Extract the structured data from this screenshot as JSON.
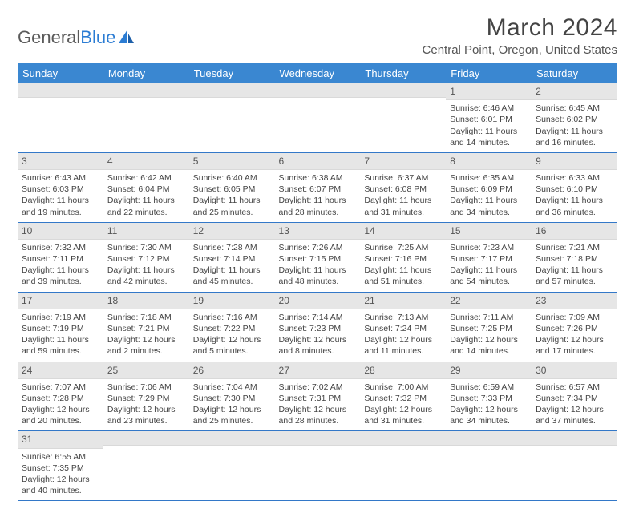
{
  "logo": {
    "text1": "General",
    "text2": "Blue"
  },
  "title": "March 2024",
  "subtitle": "Central Point, Oregon, United States",
  "colors": {
    "header_bg": "#3a87d1",
    "row_border": "#3378c8",
    "daynum_bg": "#e6e6e6",
    "text": "#444444",
    "accent": "#2b7cd3"
  },
  "weekdays": [
    "Sunday",
    "Monday",
    "Tuesday",
    "Wednesday",
    "Thursday",
    "Friday",
    "Saturday"
  ],
  "first_day_index": 5,
  "days": [
    {
      "n": 1,
      "sunrise": "6:46 AM",
      "sunset": "6:01 PM",
      "daylight": "11 hours and 14 minutes."
    },
    {
      "n": 2,
      "sunrise": "6:45 AM",
      "sunset": "6:02 PM",
      "daylight": "11 hours and 16 minutes."
    },
    {
      "n": 3,
      "sunrise": "6:43 AM",
      "sunset": "6:03 PM",
      "daylight": "11 hours and 19 minutes."
    },
    {
      "n": 4,
      "sunrise": "6:42 AM",
      "sunset": "6:04 PM",
      "daylight": "11 hours and 22 minutes."
    },
    {
      "n": 5,
      "sunrise": "6:40 AM",
      "sunset": "6:05 PM",
      "daylight": "11 hours and 25 minutes."
    },
    {
      "n": 6,
      "sunrise": "6:38 AM",
      "sunset": "6:07 PM",
      "daylight": "11 hours and 28 minutes."
    },
    {
      "n": 7,
      "sunrise": "6:37 AM",
      "sunset": "6:08 PM",
      "daylight": "11 hours and 31 minutes."
    },
    {
      "n": 8,
      "sunrise": "6:35 AM",
      "sunset": "6:09 PM",
      "daylight": "11 hours and 34 minutes."
    },
    {
      "n": 9,
      "sunrise": "6:33 AM",
      "sunset": "6:10 PM",
      "daylight": "11 hours and 36 minutes."
    },
    {
      "n": 10,
      "sunrise": "7:32 AM",
      "sunset": "7:11 PM",
      "daylight": "11 hours and 39 minutes."
    },
    {
      "n": 11,
      "sunrise": "7:30 AM",
      "sunset": "7:12 PM",
      "daylight": "11 hours and 42 minutes."
    },
    {
      "n": 12,
      "sunrise": "7:28 AM",
      "sunset": "7:14 PM",
      "daylight": "11 hours and 45 minutes."
    },
    {
      "n": 13,
      "sunrise": "7:26 AM",
      "sunset": "7:15 PM",
      "daylight": "11 hours and 48 minutes."
    },
    {
      "n": 14,
      "sunrise": "7:25 AM",
      "sunset": "7:16 PM",
      "daylight": "11 hours and 51 minutes."
    },
    {
      "n": 15,
      "sunrise": "7:23 AM",
      "sunset": "7:17 PM",
      "daylight": "11 hours and 54 minutes."
    },
    {
      "n": 16,
      "sunrise": "7:21 AM",
      "sunset": "7:18 PM",
      "daylight": "11 hours and 57 minutes."
    },
    {
      "n": 17,
      "sunrise": "7:19 AM",
      "sunset": "7:19 PM",
      "daylight": "11 hours and 59 minutes."
    },
    {
      "n": 18,
      "sunrise": "7:18 AM",
      "sunset": "7:21 PM",
      "daylight": "12 hours and 2 minutes."
    },
    {
      "n": 19,
      "sunrise": "7:16 AM",
      "sunset": "7:22 PM",
      "daylight": "12 hours and 5 minutes."
    },
    {
      "n": 20,
      "sunrise": "7:14 AM",
      "sunset": "7:23 PM",
      "daylight": "12 hours and 8 minutes."
    },
    {
      "n": 21,
      "sunrise": "7:13 AM",
      "sunset": "7:24 PM",
      "daylight": "12 hours and 11 minutes."
    },
    {
      "n": 22,
      "sunrise": "7:11 AM",
      "sunset": "7:25 PM",
      "daylight": "12 hours and 14 minutes."
    },
    {
      "n": 23,
      "sunrise": "7:09 AM",
      "sunset": "7:26 PM",
      "daylight": "12 hours and 17 minutes."
    },
    {
      "n": 24,
      "sunrise": "7:07 AM",
      "sunset": "7:28 PM",
      "daylight": "12 hours and 20 minutes."
    },
    {
      "n": 25,
      "sunrise": "7:06 AM",
      "sunset": "7:29 PM",
      "daylight": "12 hours and 23 minutes."
    },
    {
      "n": 26,
      "sunrise": "7:04 AM",
      "sunset": "7:30 PM",
      "daylight": "12 hours and 25 minutes."
    },
    {
      "n": 27,
      "sunrise": "7:02 AM",
      "sunset": "7:31 PM",
      "daylight": "12 hours and 28 minutes."
    },
    {
      "n": 28,
      "sunrise": "7:00 AM",
      "sunset": "7:32 PM",
      "daylight": "12 hours and 31 minutes."
    },
    {
      "n": 29,
      "sunrise": "6:59 AM",
      "sunset": "7:33 PM",
      "daylight": "12 hours and 34 minutes."
    },
    {
      "n": 30,
      "sunrise": "6:57 AM",
      "sunset": "7:34 PM",
      "daylight": "12 hours and 37 minutes."
    },
    {
      "n": 31,
      "sunrise": "6:55 AM",
      "sunset": "7:35 PM",
      "daylight": "12 hours and 40 minutes."
    }
  ],
  "labels": {
    "sunrise": "Sunrise:",
    "sunset": "Sunset:",
    "daylight": "Daylight:"
  }
}
